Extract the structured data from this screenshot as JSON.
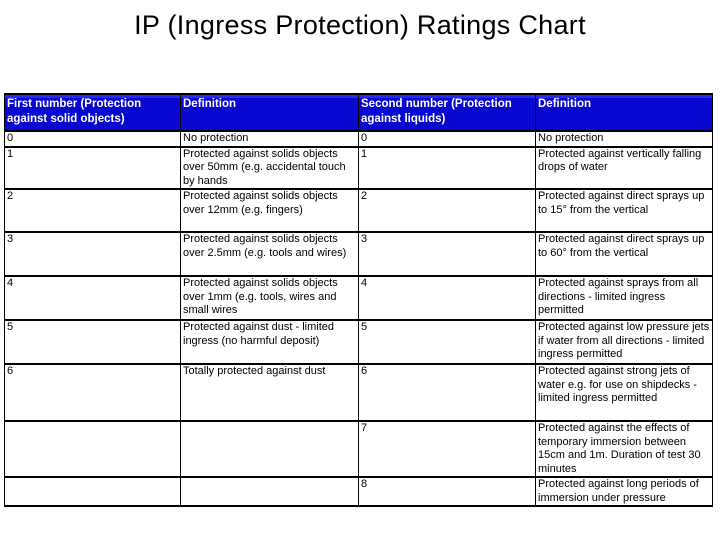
{
  "page": {
    "title": "IP (Ingress Protection) Ratings Chart"
  },
  "table": {
    "header_bg_color": "#0808d0",
    "header_text_color": "#ffffff",
    "border_color": "#000000",
    "columns": [
      "First number (Protection against solid objects)",
      "Definition",
      "Second number (Protection against liquids)",
      "Definition"
    ],
    "rows": [
      [
        "0",
        "No protection",
        "0",
        "No protection"
      ],
      [
        "1",
        "Protected against solids objects over 50mm (e.g. accidental touch by hands",
        "1",
        "Protected against vertically falling drops of water"
      ],
      [
        "2",
        "Protected against solids objects over 12mm (e.g. fingers)",
        "2",
        "Protected against direct sprays up to 15° from the vertical"
      ],
      [
        "3",
        "Protected against solids objects over 2.5mm (e.g. tools and wires)",
        "3",
        "Protected against direct sprays up to 60° from the vertical"
      ],
      [
        "4",
        "Protected against solids objects over 1mm (e.g. tools, wires and small wires",
        "4",
        "Protected against sprays from all directions - limited ingress permitted"
      ],
      [
        "5",
        "Protected against dust - limited ingress (no harmful deposit)",
        "5",
        "Protected against low pressure jets if water from all directions - limited ingress permitted"
      ],
      [
        "6",
        "Totally protected against dust",
        "6",
        "Protected against strong jets of water e.g. for use on shipdecks - limited ingress permitted"
      ],
      [
        "",
        "",
        "7",
        "Protected against the effects of temporary immersion between 15cm and 1m. Duration of test 30 minutes"
      ],
      [
        "",
        "",
        "8",
        "Protected against long periods of immersion under pressure"
      ]
    ]
  }
}
